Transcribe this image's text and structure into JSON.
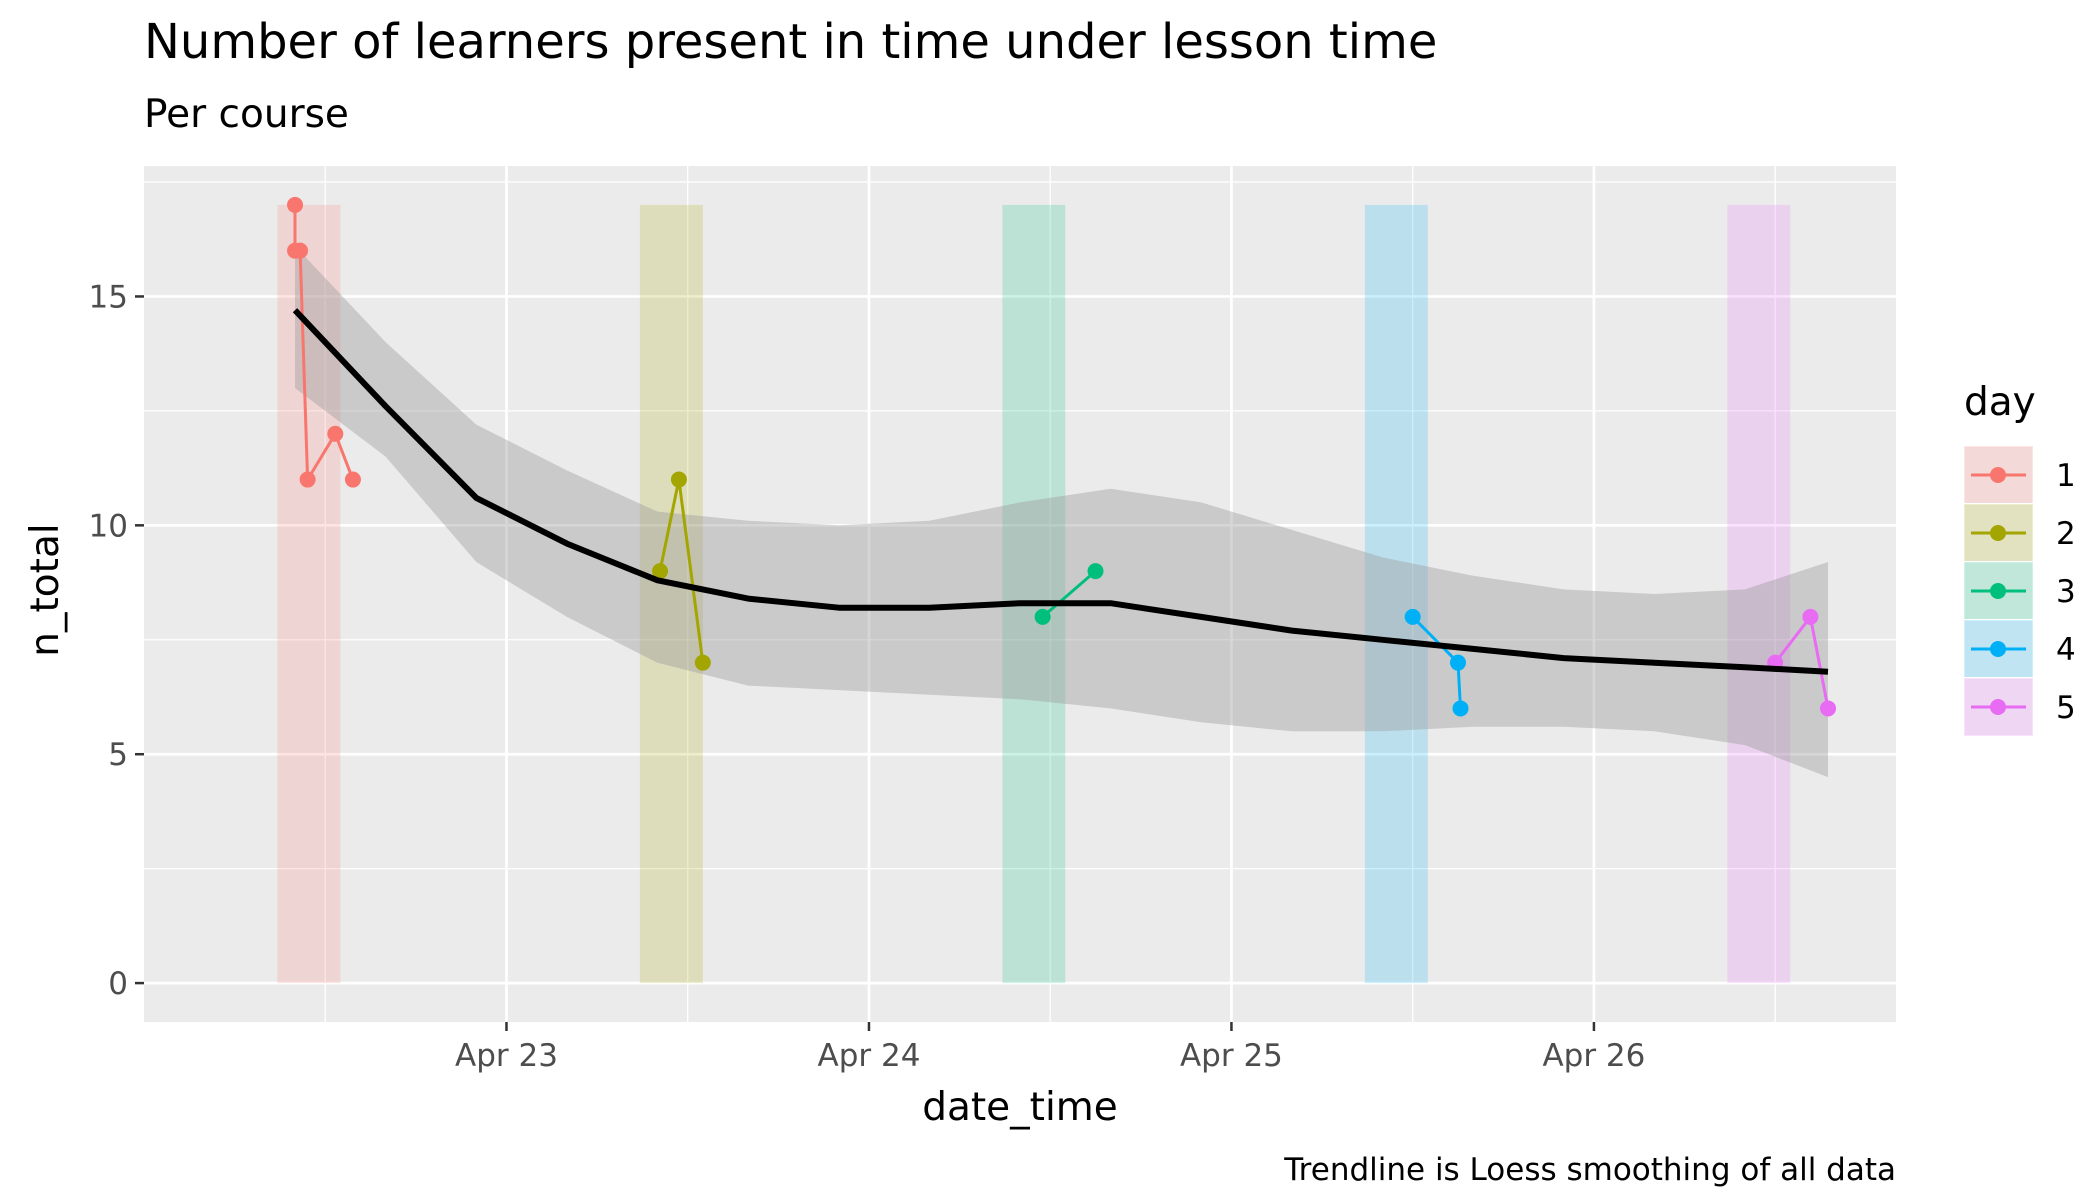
{
  "chart_data": {
    "type": "line",
    "title": "Number of learners present in time under lesson time",
    "subtitle": "Per course",
    "xlabel": "date_time",
    "ylabel": "n_total",
    "caption": "Trendline is Loess smoothing of all data",
    "xlim": [
      "2019-04-22T00:00",
      "2019-04-26T20:00"
    ],
    "ylim": [
      -0.85,
      17.85
    ],
    "x_ticks": [
      {
        "value": "2019-04-23T00:00",
        "label": "Apr 23"
      },
      {
        "value": "2019-04-24T00:00",
        "label": "Apr 24"
      },
      {
        "value": "2019-04-25T00:00",
        "label": "Apr 25"
      },
      {
        "value": "2019-04-26T00:00",
        "label": "Apr 26"
      }
    ],
    "y_ticks": [
      0,
      5,
      10,
      15
    ],
    "grid": true,
    "legend": {
      "title": "day",
      "position": "right"
    },
    "lesson_blocks": [
      {
        "day": "1",
        "start": "2019-04-22T08:50",
        "end": "2019-04-22T13:00",
        "ymin": 0,
        "ymax": 17
      },
      {
        "day": "2",
        "start": "2019-04-23T08:50",
        "end": "2019-04-23T13:00",
        "ymin": 0,
        "ymax": 17
      },
      {
        "day": "3",
        "start": "2019-04-24T08:50",
        "end": "2019-04-24T13:00",
        "ymin": 0,
        "ymax": 17
      },
      {
        "day": "4",
        "start": "2019-04-25T08:50",
        "end": "2019-04-25T13:00",
        "ymin": 0,
        "ymax": 17
      },
      {
        "day": "5",
        "start": "2019-04-26T08:50",
        "end": "2019-04-26T13:00",
        "ymin": 0,
        "ymax": 17
      }
    ],
    "series": [
      {
        "name": "1",
        "color": "#F8766D",
        "points": [
          {
            "x": "2019-04-22T10:00",
            "y": 17
          },
          {
            "x": "2019-04-22T10:00",
            "y": 16
          },
          {
            "x": "2019-04-22T10:20",
            "y": 16
          },
          {
            "x": "2019-04-22T10:50",
            "y": 11
          },
          {
            "x": "2019-04-22T12:40",
            "y": 12
          },
          {
            "x": "2019-04-22T13:50",
            "y": 11
          }
        ]
      },
      {
        "name": "2",
        "color": "#A3A500",
        "points": [
          {
            "x": "2019-04-23T10:10",
            "y": 9
          },
          {
            "x": "2019-04-23T11:25",
            "y": 11
          },
          {
            "x": "2019-04-23T13:00",
            "y": 7
          }
        ]
      },
      {
        "name": "3",
        "color": "#00BF7D",
        "points": [
          {
            "x": "2019-04-24T11:30",
            "y": 8
          },
          {
            "x": "2019-04-24T15:00",
            "y": 9
          }
        ]
      },
      {
        "name": "4",
        "color": "#00B0F6",
        "points": [
          {
            "x": "2019-04-25T12:00",
            "y": 8
          },
          {
            "x": "2019-04-25T15:00",
            "y": 7
          },
          {
            "x": "2019-04-25T15:10",
            "y": 6
          }
        ]
      },
      {
        "name": "5",
        "color": "#E76BF3",
        "points": [
          {
            "x": "2019-04-26T12:00",
            "y": 7
          },
          {
            "x": "2019-04-26T14:20",
            "y": 8
          },
          {
            "x": "2019-04-26T15:30",
            "y": 6
          }
        ]
      }
    ],
    "trendline": {
      "color": "#000000",
      "band_color": "#999999",
      "points": [
        {
          "x": "2019-04-22T10:00",
          "y": 14.7,
          "lo": 13.0,
          "hi": 16.1
        },
        {
          "x": "2019-04-22T16:00",
          "y": 12.6,
          "lo": 11.5,
          "hi": 14.0
        },
        {
          "x": "2019-04-22T22:00",
          "y": 10.6,
          "lo": 9.2,
          "hi": 12.2
        },
        {
          "x": "2019-04-23T04:00",
          "y": 9.6,
          "lo": 8.0,
          "hi": 11.2
        },
        {
          "x": "2019-04-23T10:00",
          "y": 8.8,
          "lo": 7.0,
          "hi": 10.3
        },
        {
          "x": "2019-04-23T16:00",
          "y": 8.4,
          "lo": 6.5,
          "hi": 10.1
        },
        {
          "x": "2019-04-23T22:00",
          "y": 8.2,
          "lo": 6.4,
          "hi": 10.0
        },
        {
          "x": "2019-04-24T04:00",
          "y": 8.2,
          "lo": 6.3,
          "hi": 10.1
        },
        {
          "x": "2019-04-24T10:00",
          "y": 8.3,
          "lo": 6.2,
          "hi": 10.5
        },
        {
          "x": "2019-04-24T16:00",
          "y": 8.3,
          "lo": 6.0,
          "hi": 10.8
        },
        {
          "x": "2019-04-24T22:00",
          "y": 8.0,
          "lo": 5.7,
          "hi": 10.5
        },
        {
          "x": "2019-04-25T04:00",
          "y": 7.7,
          "lo": 5.5,
          "hi": 9.9
        },
        {
          "x": "2019-04-25T10:00",
          "y": 7.5,
          "lo": 5.5,
          "hi": 9.3
        },
        {
          "x": "2019-04-25T16:00",
          "y": 7.3,
          "lo": 5.6,
          "hi": 8.9
        },
        {
          "x": "2019-04-25T22:00",
          "y": 7.1,
          "lo": 5.6,
          "hi": 8.6
        },
        {
          "x": "2019-04-26T04:00",
          "y": 7.0,
          "lo": 5.5,
          "hi": 8.5
        },
        {
          "x": "2019-04-26T10:00",
          "y": 6.9,
          "lo": 5.2,
          "hi": 8.6
        },
        {
          "x": "2019-04-26T15:30",
          "y": 6.8,
          "lo": 4.5,
          "hi": 9.2
        }
      ]
    }
  }
}
